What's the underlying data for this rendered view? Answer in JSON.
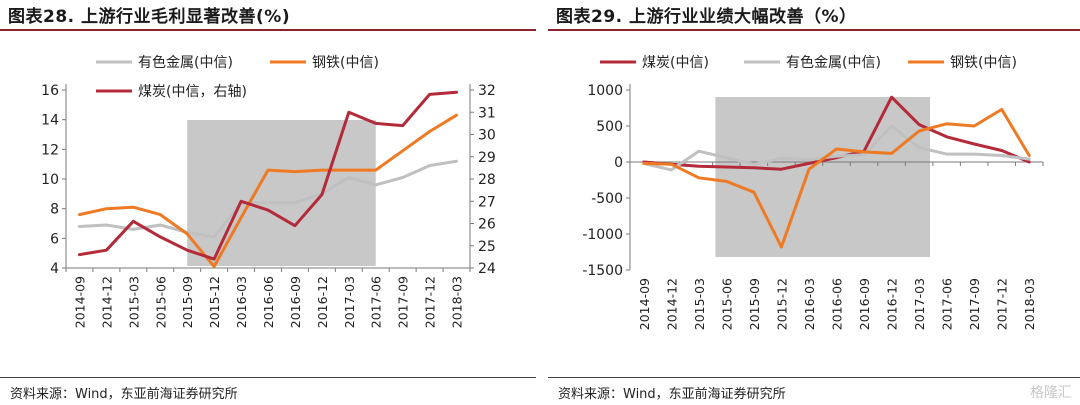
{
  "watermark": "格隆汇",
  "panels": [
    {
      "title": "图表28. 上游行业毛利显著改善(%)",
      "source": "资料来源：Wind，东亚前海证券研究所"
    },
    {
      "title": "图表29. 上游行业业绩大幅改善（%）",
      "source": "资料来源：Wind，东亚前海证券研究所"
    }
  ],
  "chart_data": [
    {
      "type": "line",
      "title": "上游行业毛利显著改善(%)",
      "categories": [
        "2014-09",
        "2014-12",
        "2015-03",
        "2015-06",
        "2015-09",
        "2015-12",
        "2016-03",
        "2016-06",
        "2016-09",
        "2016-12",
        "2017-03",
        "2017-06",
        "2017-09",
        "2017-12",
        "2018-03"
      ],
      "tick_labels": [
        "2014-09",
        "2014-12",
        "2015-03",
        "2015-06",
        "2015-09",
        "2015-12",
        "2016-03",
        "2016-06",
        "2016-09",
        "2016-12",
        "2017-03",
        "2017-06",
        "2017-09",
        "2017-12",
        "2018-03"
      ],
      "y_left": {
        "ylim": [
          4,
          16
        ],
        "ticks": [
          4,
          6,
          8,
          10,
          12,
          14,
          16
        ]
      },
      "y_right": {
        "ylim": [
          24,
          32
        ],
        "ticks": [
          24,
          25,
          26,
          27,
          28,
          29,
          30,
          31,
          32
        ]
      },
      "shade": {
        "from": "2015-09",
        "to": "2017-06",
        "color": "#c8c8c8"
      },
      "legend": [
        "有色金属(中信)",
        "钢铁(中信)",
        "煤炭(中信，右轴)"
      ],
      "series": [
        {
          "name": "有色金属(中信)",
          "axis": "left",
          "color": "#c0c0c0",
          "values": [
            6.8,
            6.9,
            6.6,
            6.9,
            6.4,
            6.1,
            8.4,
            8.4,
            8.4,
            9.0,
            10.1,
            9.6,
            10.1,
            10.9,
            11.2
          ]
        },
        {
          "name": "钢铁(中信)",
          "axis": "left",
          "color": "#ee7a24",
          "values": [
            7.6,
            8.0,
            8.1,
            7.6,
            6.3,
            4.1,
            7.4,
            10.6,
            10.5,
            10.6,
            10.6,
            10.6,
            11.9,
            13.2,
            14.3
          ]
        },
        {
          "name": "煤炭(中信，右轴)",
          "axis": "right",
          "color": "#b32a3a",
          "values": [
            24.6,
            24.8,
            26.1,
            25.4,
            24.8,
            24.4,
            27.0,
            26.6,
            25.9,
            27.3,
            31.0,
            30.5,
            30.4,
            31.8,
            31.9
          ]
        }
      ]
    },
    {
      "type": "line",
      "title": "上游行业业绩大幅改善（%）",
      "categories": [
        "2014-09",
        "2014-12",
        "2015-03",
        "2015-06",
        "2015-09",
        "2015-12",
        "2016-03",
        "2016-06",
        "2016-09",
        "2016-12",
        "2017-03",
        "2017-06",
        "2017-09",
        "2017-12",
        "2018-03"
      ],
      "tick_labels": [
        "2014-09",
        "2014-12",
        "2015-03",
        "2015-06",
        "2015-09",
        "2015-12",
        "2016-03",
        "2016-06",
        "2016-09",
        "2016-12",
        "2017-03",
        "2017-06",
        "2017-09",
        "2017-12",
        "2018-03"
      ],
      "y_left": {
        "ylim": [
          -1500,
          1000
        ],
        "ticks": [
          -1500,
          -1000,
          -500,
          0,
          500,
          1000
        ]
      },
      "shade": {
        "from": "2015-06",
        "to": "2017-03",
        "color": "#c8c8c8"
      },
      "legend": [
        "煤炭(中信)",
        "有色金属(中信)",
        "钢铁(中信)"
      ],
      "series": [
        {
          "name": "煤炭(中信)",
          "axis": "left",
          "color": "#b32a3a",
          "values": [
            0,
            -30,
            -60,
            -70,
            -80,
            -100,
            -20,
            60,
            150,
            900,
            520,
            350,
            250,
            160,
            0
          ]
        },
        {
          "name": "有色金属(中信)",
          "axis": "left",
          "color": "#c0c0c0",
          "values": [
            -20,
            -110,
            150,
            60,
            -30,
            50,
            30,
            80,
            100,
            500,
            200,
            110,
            110,
            90,
            40
          ]
        },
        {
          "name": "钢铁(中信)",
          "axis": "left",
          "color": "#ee7a24",
          "values": [
            -20,
            -30,
            -220,
            -270,
            -420,
            -1180,
            -100,
            180,
            140,
            120,
            430,
            530,
            500,
            730,
            90
          ]
        }
      ]
    }
  ]
}
